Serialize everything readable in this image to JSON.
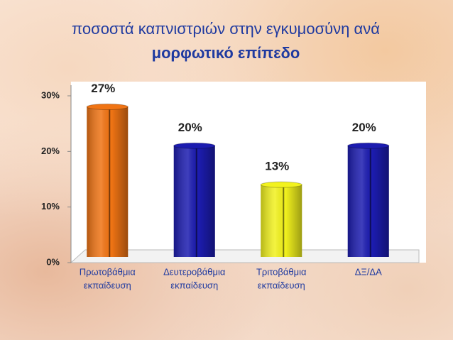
{
  "chart_data": {
    "type": "bar",
    "title": "ποσοστά καπνιστριών στην εγκυμοσύνη ανά",
    "subtitle": "μορφωτικό επίπεδο",
    "categories": [
      [
        "Πρωτοβάθμια",
        "εκπαίδευση"
      ],
      [
        "Δευτεροβάθμια",
        "εκπαίδευση"
      ],
      [
        "Τριτοβάθμια",
        "εκπαίδευση"
      ],
      [
        "ΔΞ/ΔΑ"
      ]
    ],
    "values": [
      27,
      20,
      13,
      20
    ],
    "value_labels": [
      "27%",
      "20%",
      "13%",
      "20%"
    ],
    "colors": [
      "#f07414",
      "#1c1cb0",
      "#f2f21e",
      "#1c1cb0"
    ],
    "ylim": [
      0,
      30
    ],
    "yticks": [
      {
        "value": 0,
        "label": "0%"
      },
      {
        "value": 10,
        "label": "10%"
      },
      {
        "value": 20,
        "label": "20%"
      },
      {
        "value": 30,
        "label": "30%"
      }
    ]
  }
}
